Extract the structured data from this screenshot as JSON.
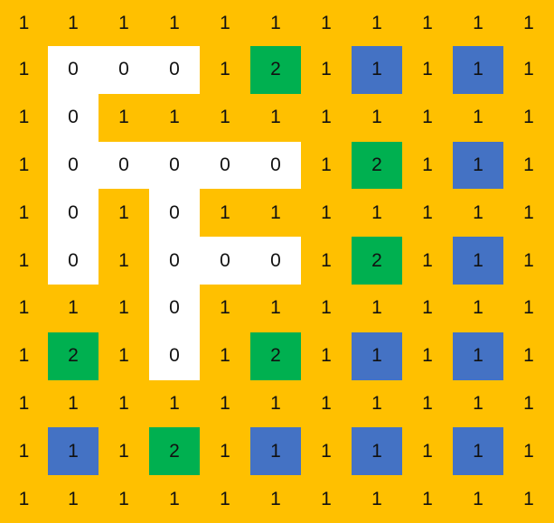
{
  "colors": {
    "y": "#FFC000",
    "w": "#FFFFFF",
    "g": "#00B050",
    "b": "#4472C4"
  },
  "grid": {
    "values": [
      [
        "1",
        "1",
        "1",
        "1",
        "1",
        "1",
        "1",
        "1",
        "1",
        "1",
        "1"
      ],
      [
        "1",
        "0",
        "0",
        "0",
        "1",
        "2",
        "1",
        "1",
        "1",
        "1",
        "1"
      ],
      [
        "1",
        "0",
        "1",
        "1",
        "1",
        "1",
        "1",
        "1",
        "1",
        "1",
        "1"
      ],
      [
        "1",
        "0",
        "0",
        "0",
        "0",
        "0",
        "1",
        "2",
        "1",
        "1",
        "1"
      ],
      [
        "1",
        "0",
        "1",
        "0",
        "1",
        "1",
        "1",
        "1",
        "1",
        "1",
        "1"
      ],
      [
        "1",
        "0",
        "1",
        "0",
        "0",
        "0",
        "1",
        "2",
        "1",
        "1",
        "1"
      ],
      [
        "1",
        "1",
        "1",
        "0",
        "1",
        "1",
        "1",
        "1",
        "1",
        "1",
        "1"
      ],
      [
        "1",
        "2",
        "1",
        "0",
        "1",
        "2",
        "1",
        "1",
        "1",
        "1",
        "1"
      ],
      [
        "1",
        "1",
        "1",
        "1",
        "1",
        "1",
        "1",
        "1",
        "1",
        "1",
        "1"
      ],
      [
        "1",
        "1",
        "1",
        "2",
        "1",
        "1",
        "1",
        "1",
        "1",
        "1",
        "1"
      ],
      [
        "1",
        "1",
        "1",
        "1",
        "1",
        "1",
        "1",
        "1",
        "1",
        "1",
        "1"
      ]
    ],
    "fills": [
      "yyyyyyyyyyy",
      "ywwwygybyby",
      "ywyyyyyyyyy",
      "ywwwwwygyby",
      "ywywyyyyyyy",
      "ywywwwygyby",
      "yyywyyyyyyy",
      "ygywygybyby",
      "yyyyyyyyyyy",
      "ybygybybyby",
      "yyyyyyyyyyy"
    ]
  }
}
